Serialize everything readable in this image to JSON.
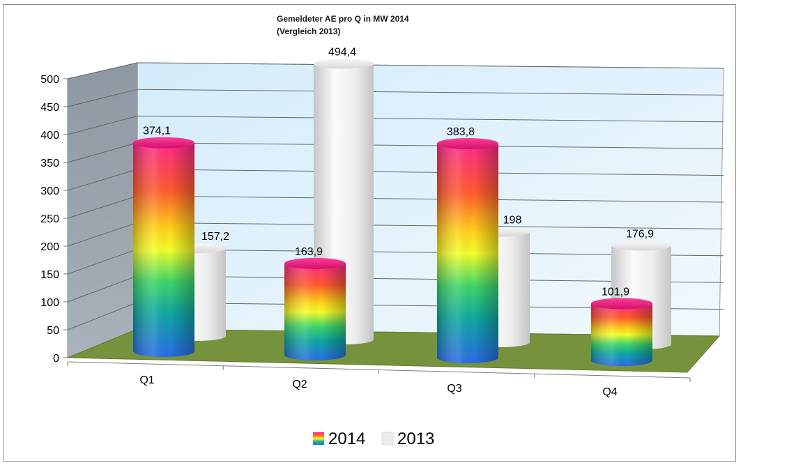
{
  "chart_data": {
    "type": "bar",
    "style": "3d-cylinder",
    "title": [
      "Gemeldeter AE  pro Q in MW 2014",
      "(Vergleich 2013)"
    ],
    "categories": [
      "Q1",
      "Q2",
      "Q3",
      "Q4"
    ],
    "series": [
      {
        "name": "2014",
        "values": [
          374.1,
          163.9,
          383.8,
          101.9
        ],
        "labels": [
          "374,1",
          "163,9",
          "383,8",
          "101,9"
        ],
        "fill": "rainbow"
      },
      {
        "name": "2013",
        "values": [
          157.2,
          494.4,
          198,
          176.9
        ],
        "labels": [
          "157,2",
          "494,4",
          "198",
          "176,9"
        ],
        "fill": "#e9e9e9"
      }
    ],
    "ylim": [
      0,
      500
    ],
    "yticks": [
      0,
      50,
      100,
      150,
      200,
      250,
      300,
      350,
      400,
      450,
      500
    ],
    "ytick_labels": [
      "0",
      "50",
      "100",
      "150",
      "200",
      "250",
      "300",
      "350",
      "400",
      "450",
      "500"
    ],
    "xlabel": "",
    "ylabel": "",
    "grid": true,
    "legend_position": "bottom",
    "colors": {
      "back_wall": "#dff0fb",
      "side_wall": "#9aa3ad",
      "floor": "#77923c",
      "gridline": "#666666",
      "cyl_2013": "#e9e9e9"
    }
  }
}
